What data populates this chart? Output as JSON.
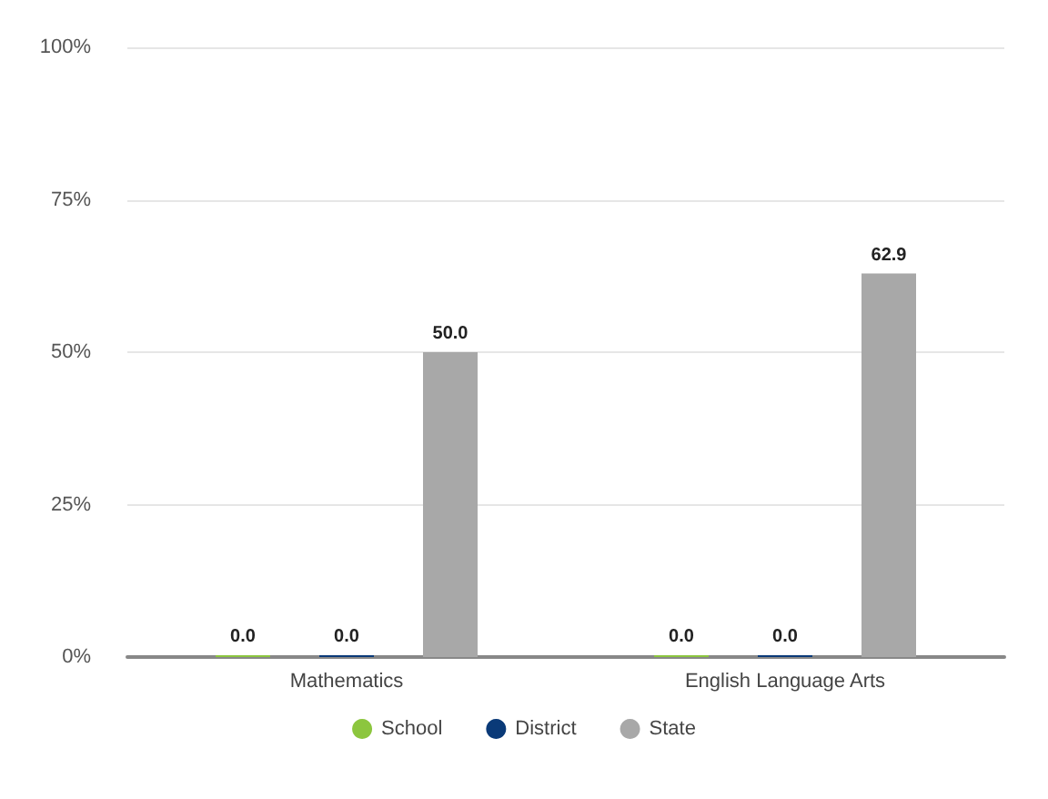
{
  "chart_data": {
    "type": "bar",
    "categories": [
      "Mathematics",
      "English Language Arts"
    ],
    "series": [
      {
        "name": "School",
        "color": "#8cc63e",
        "values": [
          0,
          0
        ],
        "value_labels": [
          "0.0",
          "0.0"
        ]
      },
      {
        "name": "District",
        "color": "#0a3a78",
        "values": [
          0,
          0
        ],
        "value_labels": [
          "0.0",
          "0.0"
        ]
      },
      {
        "name": "State",
        "color": "#a8a8a8",
        "values": [
          50,
          62.9
        ],
        "value_labels": [
          "50.0",
          "62.9"
        ]
      }
    ],
    "ylim": [
      0,
      100
    ],
    "yticks": [
      {
        "value": 0,
        "label": "0%"
      },
      {
        "value": 25,
        "label": "25%"
      },
      {
        "value": 50,
        "label": "50%"
      },
      {
        "value": 75,
        "label": "75%"
      },
      {
        "value": 100,
        "label": "100%"
      }
    ],
    "grid": "y",
    "legend": "bottom"
  }
}
